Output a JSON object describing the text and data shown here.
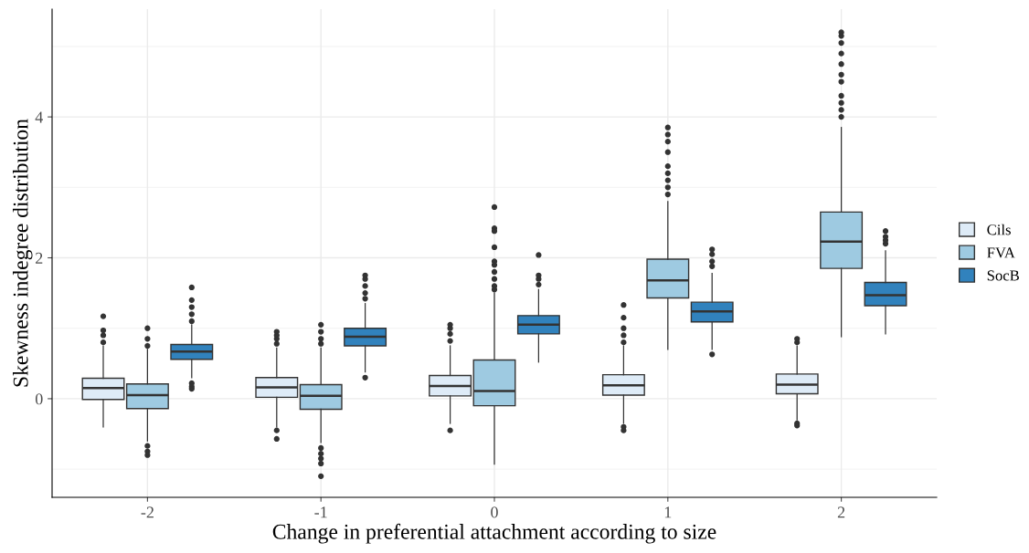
{
  "chart_data": {
    "type": "box",
    "xlabel": "Change in preferential attachment according to size",
    "ylabel": "Skewness indegree distribution",
    "categories": [
      "-2",
      "-1",
      "0",
      "1",
      "2"
    ],
    "ylim": [
      -1.4,
      5.53
    ],
    "yticks": [
      0,
      2,
      4
    ],
    "grid": true,
    "legend": "right",
    "series": [
      {
        "name": "Cils",
        "color": "#deebf7",
        "boxes": [
          {
            "low": -0.4,
            "q1": -0.01,
            "median": 0.15,
            "q3": 0.29,
            "high": 0.75,
            "outliers": [
              0.8,
              0.9,
              0.97,
              1.17
            ]
          },
          {
            "low": -0.4,
            "q1": 0.02,
            "median": 0.16,
            "q3": 0.3,
            "high": 0.72,
            "outliers": [
              0.78,
              0.85,
              0.9,
              0.95,
              -0.45,
              -0.57
            ]
          },
          {
            "low": -0.35,
            "q1": 0.04,
            "median": 0.18,
            "q3": 0.33,
            "high": 0.75,
            "outliers": [
              0.82,
              0.92,
              1.0,
              1.05,
              -0.45
            ]
          },
          {
            "low": -0.35,
            "q1": 0.05,
            "median": 0.19,
            "q3": 0.34,
            "high": 0.75,
            "outliers": [
              0.8,
              0.9,
              1.0,
              1.15,
              1.33,
              -0.4,
              -0.45
            ]
          },
          {
            "low": -0.3,
            "q1": 0.07,
            "median": 0.2,
            "q3": 0.35,
            "high": 0.75,
            "outliers": [
              0.8,
              0.85,
              -0.35,
              -0.38
            ]
          }
        ]
      },
      {
        "name": "FVA",
        "color": "#9ecae1",
        "boxes": [
          {
            "low": -0.6,
            "q1": -0.14,
            "median": 0.05,
            "q3": 0.21,
            "high": 0.7,
            "outliers": [
              0.75,
              0.85,
              1.0,
              -0.67,
              -0.75,
              -0.8
            ]
          },
          {
            "low": -0.62,
            "q1": -0.15,
            "median": 0.04,
            "q3": 0.2,
            "high": 0.72,
            "outliers": [
              0.78,
              0.85,
              0.95,
              1.05,
              -0.7,
              -0.78,
              -0.85,
              -0.92,
              -1.1
            ]
          },
          {
            "low": -0.93,
            "q1": -0.1,
            "median": 0.11,
            "q3": 0.55,
            "high": 1.5,
            "outliers": [
              1.55,
              1.6,
              1.7,
              1.8,
              1.9,
              1.95,
              2.15,
              2.38,
              2.42,
              2.72
            ]
          },
          {
            "low": 0.7,
            "q1": 1.43,
            "median": 1.68,
            "q3": 1.98,
            "high": 2.8,
            "outliers": [
              2.9,
              3.0,
              3.1,
              3.2,
              3.3,
              3.5,
              3.65,
              3.75,
              3.85
            ]
          },
          {
            "low": 0.88,
            "q1": 1.85,
            "median": 2.23,
            "q3": 2.65,
            "high": 3.85,
            "outliers": [
              4.0,
              4.1,
              4.2,
              4.3,
              4.5,
              4.6,
              4.75,
              4.9,
              5.05,
              5.15,
              5.2
            ]
          }
        ]
      },
      {
        "name": "SocB",
        "color": "#3182bd",
        "boxes": [
          {
            "low": 0.3,
            "q1": 0.56,
            "median": 0.67,
            "q3": 0.77,
            "high": 1.05,
            "outliers": [
              1.1,
              1.2,
              1.3,
              1.4,
              1.58,
              0.22,
              0.17,
              0.14
            ]
          },
          {
            "low": 0.38,
            "q1": 0.75,
            "median": 0.88,
            "q3": 1.0,
            "high": 1.35,
            "outliers": [
              0.3,
              1.42,
              1.5,
              1.6,
              1.7,
              1.75
            ]
          },
          {
            "low": 0.52,
            "q1": 0.92,
            "median": 1.05,
            "q3": 1.18,
            "high": 1.55,
            "outliers": [
              1.62,
              1.7,
              1.75,
              2.04
            ]
          },
          {
            "low": 0.7,
            "q1": 1.09,
            "median": 1.24,
            "q3": 1.37,
            "high": 1.78,
            "outliers": [
              0.63,
              1.88,
              1.95,
              2.05,
              2.12
            ]
          },
          {
            "low": 0.92,
            "q1": 1.32,
            "median": 1.47,
            "q3": 1.65,
            "high": 2.1,
            "outliers": [
              2.2,
              2.25,
              2.3,
              2.38
            ]
          }
        ]
      }
    ]
  }
}
